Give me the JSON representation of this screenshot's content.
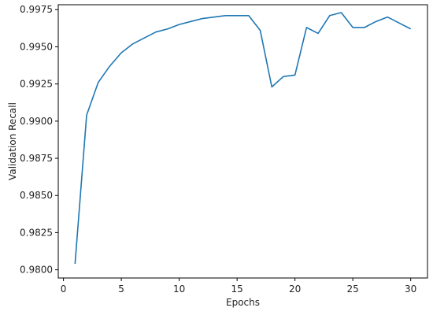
{
  "chart_data": {
    "type": "line",
    "title": "",
    "xlabel": "Epochs",
    "ylabel": "Validation Recall",
    "xlim": [
      -0.45,
      31.45
    ],
    "ylim": [
      0.97945,
      0.99783
    ],
    "grid": false,
    "legend": "none",
    "x_ticks": [
      0,
      5,
      10,
      15,
      20,
      25,
      30
    ],
    "y_ticks": [
      0.98,
      0.9825,
      0.985,
      0.9875,
      0.99,
      0.9925,
      0.995,
      0.9975
    ],
    "y_tick_labels": [
      "0.9800",
      "0.9825",
      "0.9850",
      "0.9875",
      "0.9900",
      "0.9925",
      "0.9950",
      "0.9975"
    ],
    "series": [
      {
        "color": "#1f77b4",
        "x": [
          1,
          2,
          3,
          4,
          5,
          6,
          7,
          8,
          9,
          10,
          11,
          12,
          13,
          14,
          15,
          16,
          17,
          18,
          19,
          20,
          21,
          22,
          23,
          24,
          25,
          26,
          27,
          28,
          29,
          30
        ],
        "y": [
          0.9804,
          0.9904,
          0.9926,
          0.9937,
          0.9946,
          0.9952,
          0.9956,
          0.996,
          0.9962,
          0.9965,
          0.9967,
          0.9969,
          0.997,
          0.9971,
          0.9971,
          0.9971,
          0.9961,
          0.9923,
          0.993,
          0.9931,
          0.9963,
          0.9959,
          0.9971,
          0.9973,
          0.9963,
          0.9963,
          0.9967,
          0.997,
          0.9966,
          0.9962
        ]
      }
    ]
  }
}
